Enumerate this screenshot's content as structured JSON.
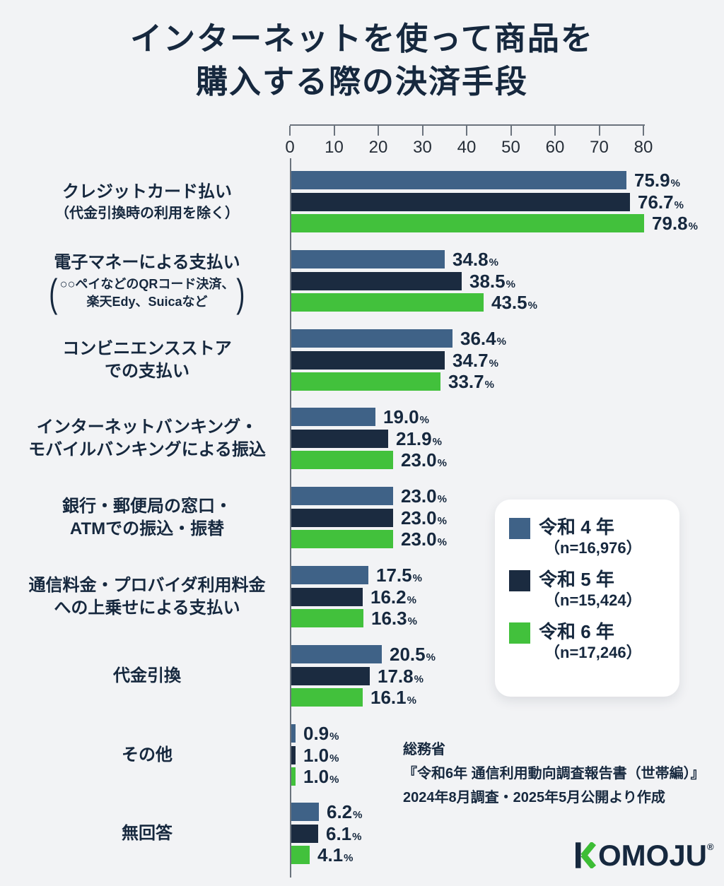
{
  "title": {
    "line1": "インターネットを使って商品を",
    "line2": "購入する際の決済手段"
  },
  "chart_data": {
    "type": "bar",
    "orientation": "horizontal",
    "unit": "%",
    "xlim": [
      0,
      80
    ],
    "xticks": [
      0,
      10,
      20,
      30,
      40,
      50,
      60,
      70,
      80
    ],
    "grid": false,
    "legend_position": "right-middle",
    "categories": [
      {
        "title_lines": [
          "クレジットカード払い"
        ],
        "note_lines": [
          "（代金引換時の利用を除く）"
        ]
      },
      {
        "title_lines": [
          "電子マネーによる支払い"
        ],
        "paren_lines": [
          "○○ペイなどのQRコード決済、",
          "楽天Edy、Suicaなど"
        ]
      },
      {
        "title_lines": [
          "コンビニエンスストア",
          "での支払い"
        ]
      },
      {
        "title_lines": [
          "インターネットバンキング・",
          "モバイルバンキングによる振込"
        ]
      },
      {
        "title_lines": [
          "銀行・郵便局の窓口・",
          "ATMでの振込・振替"
        ]
      },
      {
        "title_lines": [
          "通信料金・プロバイダ利用料金",
          "への上乗せによる支払い"
        ]
      },
      {
        "title_lines": [
          "代金引換"
        ]
      },
      {
        "title_lines": [
          "その他"
        ]
      },
      {
        "title_lines": [
          "無回答"
        ]
      }
    ],
    "series": [
      {
        "label": "令和 4 年",
        "n_label": "（n=16,976）",
        "color": "#3f6287",
        "values": [
          75.9,
          34.8,
          36.4,
          19.0,
          23.0,
          17.5,
          20.5,
          0.9,
          6.2
        ]
      },
      {
        "label": "令和 5 年",
        "n_label": "（n=15,424）",
        "color": "#1b2b40",
        "values": [
          76.7,
          38.5,
          34.7,
          21.9,
          23.0,
          16.2,
          17.8,
          1.0,
          6.1
        ]
      },
      {
        "label": "令和 6 年",
        "n_label": "（n=17,246）",
        "color": "#42c13c",
        "values": [
          79.8,
          43.5,
          33.7,
          23.0,
          23.0,
          16.3,
          16.1,
          1.0,
          4.1
        ]
      }
    ]
  },
  "source": {
    "line1": "総務省",
    "line2": "『令和6年 通信利用動向調査報告書（世帯編）』",
    "line3": "2024年8月調査・2025年5月公開より作成"
  },
  "logo": {
    "brand": "KOMOJU",
    "text_rest": "OMOJU",
    "registered": "®",
    "k_green": "#3dbd35",
    "k_navy": "#16283e"
  },
  "colors": {
    "background": "#f2f3f5",
    "text": "#16283e",
    "axis": "#6b737d"
  }
}
